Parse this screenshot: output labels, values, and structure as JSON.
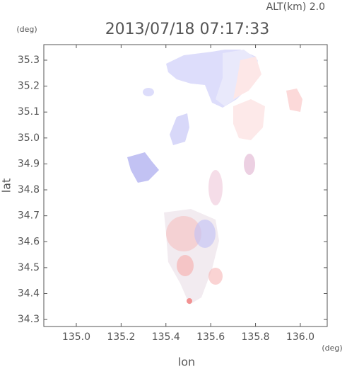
{
  "chart_data": {
    "type": "map",
    "title": "2013/07/18 07:17:33",
    "subtitle": "ALT(km) 2.0",
    "x_label": "lon",
    "y_label": "lat",
    "x_unit": "(deg)",
    "y_unit": "(deg)",
    "xlim": [
      134.855,
      136.12
    ],
    "ylim": [
      34.273,
      35.36
    ],
    "xticks": [
      {
        "value": 135,
        "label": "135.0"
      },
      135.2,
      135.4,
      135.6,
      135.8,
      {
        "value": 136,
        "label": "136.0"
      }
    ],
    "yticks": [
      34.3,
      34.4,
      34.5,
      34.6,
      34.7,
      34.8,
      34.9,
      {
        "value": 35,
        "label": "35.0"
      },
      35.1,
      35.2,
      35.3
    ]
  }
}
